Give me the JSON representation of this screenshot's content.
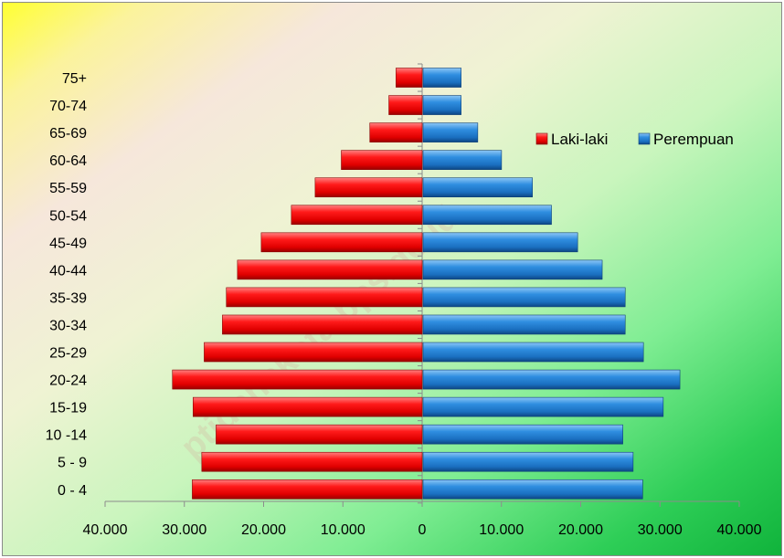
{
  "chart_data": {
    "type": "bar",
    "orientation": "horizontal",
    "layout": "population-pyramid",
    "categories": [
      "0 - 4",
      "5 - 9",
      "10 -14",
      "15-19",
      "20-24",
      "25-29",
      "30-34",
      "35-39",
      "40-44",
      "45-49",
      "50-54",
      "55-59",
      "60-64",
      "65-69",
      "70-74",
      "75+"
    ],
    "series": [
      {
        "name": "Laki-laki",
        "color": "#ff1a1a",
        "values": [
          29000,
          27800,
          26000,
          28900,
          31500,
          27500,
          25200,
          24700,
          23300,
          20300,
          16500,
          13500,
          10200,
          6600,
          4200,
          3300
        ]
      },
      {
        "name": "Perempuan",
        "color": "#1f7fd4",
        "values": [
          27700,
          26500,
          25200,
          30300,
          32400,
          27800,
          25500,
          25500,
          22600,
          19500,
          16200,
          13800,
          9900,
          6900,
          4800,
          4800
        ]
      }
    ],
    "x_tick_labels": [
      "40.000",
      "30.000",
      "20.000",
      "10.000",
      "0",
      "10.000",
      "20.000",
      "30.000",
      "40.000"
    ],
    "xlim": [
      -40000,
      40000
    ],
    "title": "",
    "xlabel": "",
    "ylabel": "",
    "legend_position": "right",
    "grid": false,
    "watermark": "ptidanakota.bps.go.id"
  }
}
